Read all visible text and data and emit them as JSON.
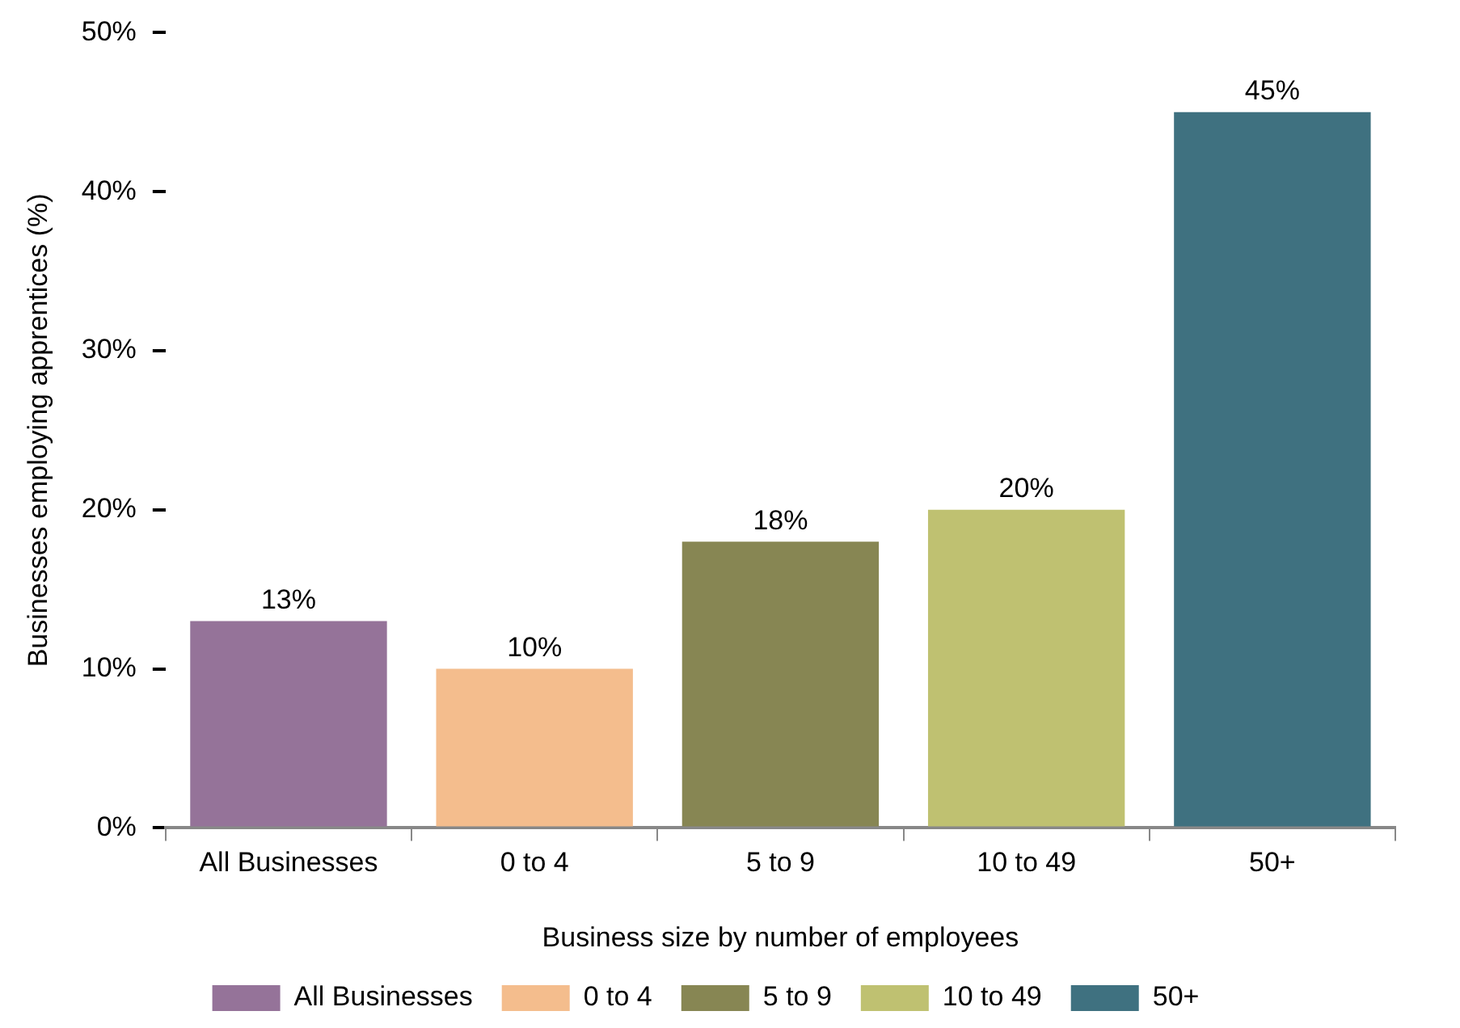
{
  "chart_data": {
    "type": "bar",
    "xlabel": "Business size by number of employees",
    "ylabel": "Businesses employing apprentices (%)",
    "categories": [
      "All Businesses",
      "0 to 4",
      "5 to 9",
      "10 to 49",
      "50+"
    ],
    "series": [
      {
        "name": "All Businesses",
        "color": "#957399",
        "values": [
          13,
          null,
          null,
          null,
          null
        ],
        "value_labels": [
          "13%",
          null,
          null,
          null,
          null
        ]
      },
      {
        "name": "0 to 4",
        "color": "#f4bd8d",
        "values": [
          null,
          10,
          null,
          null,
          null
        ],
        "value_labels": [
          null,
          "10%",
          null,
          null,
          null
        ]
      },
      {
        "name": "5 to 9",
        "color": "#878653",
        "values": [
          null,
          null,
          18,
          null,
          null
        ],
        "value_labels": [
          null,
          null,
          "18%",
          null,
          null
        ]
      },
      {
        "name": "10 to 49",
        "color": "#bfc171",
        "values": [
          null,
          null,
          null,
          20,
          null
        ],
        "value_labels": [
          null,
          null,
          null,
          "20%",
          null
        ]
      },
      {
        "name": "50+",
        "color": "#3f7180",
        "values": [
          null,
          null,
          null,
          null,
          45
        ],
        "value_labels": [
          null,
          null,
          null,
          null,
          "45%"
        ]
      }
    ],
    "ylim": [
      0,
      50
    ],
    "yticks": [
      {
        "value": 0,
        "label": "0%"
      },
      {
        "value": 10,
        "label": "10%"
      },
      {
        "value": 20,
        "label": "20%"
      },
      {
        "value": 30,
        "label": "30%"
      },
      {
        "value": 40,
        "label": "40%"
      },
      {
        "value": 50,
        "label": "50%"
      }
    ],
    "grid": false,
    "legend": "bottom"
  }
}
